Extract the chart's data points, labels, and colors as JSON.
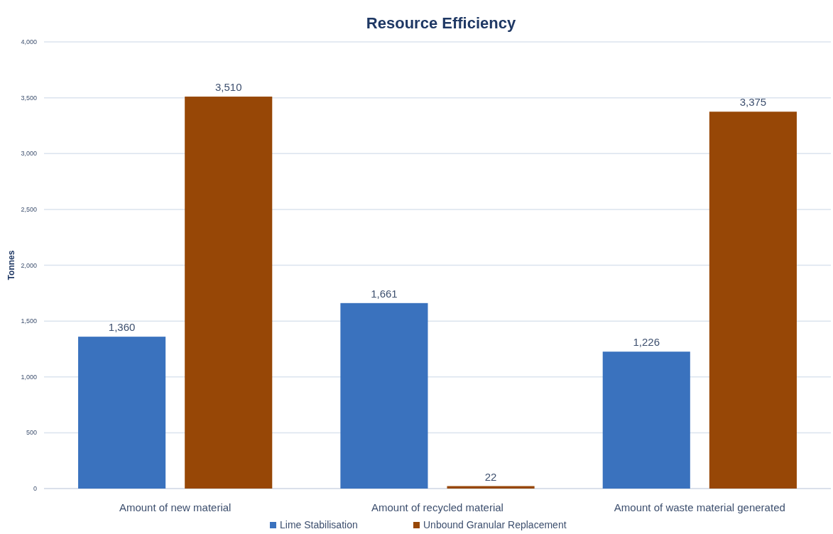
{
  "chart_data": {
    "type": "bar",
    "title": "Resource Efficiency",
    "ylabel": "Tonnes",
    "categories": [
      "Amount of new material",
      "Amount of recycled material",
      "Amount of waste material generated"
    ],
    "series": [
      {
        "name": "Lime Stabilisation",
        "color": "#3a72be",
        "values": [
          1360,
          1661,
          1226
        ],
        "value_labels": [
          "1,360",
          "1,661",
          "1,226"
        ]
      },
      {
        "name": "Unbound Granular Replacement",
        "color": "#974706",
        "values": [
          3510,
          22,
          3375
        ],
        "value_labels": [
          "3,510",
          "22",
          "3,375"
        ]
      }
    ],
    "ylim": [
      0,
      4000
    ],
    "yticks": [
      {
        "value": 0,
        "label": "0"
      },
      {
        "value": 500,
        "label": "500"
      },
      {
        "value": 1000,
        "label": "1,000"
      },
      {
        "value": 1500,
        "label": "1,500"
      },
      {
        "value": 2000,
        "label": "2,000"
      },
      {
        "value": 2500,
        "label": "2,500"
      },
      {
        "value": 3000,
        "label": "3,000"
      },
      {
        "value": 3500,
        "label": "3,500"
      },
      {
        "value": 4000,
        "label": "4,000"
      }
    ],
    "grid": "y",
    "legend": "bottom"
  }
}
